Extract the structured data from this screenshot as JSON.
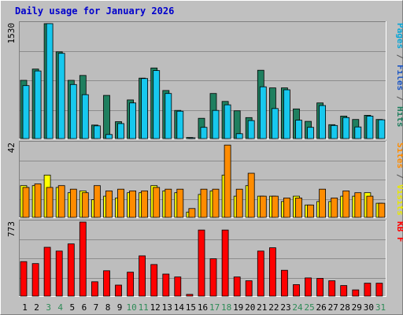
{
  "colors": {
    "background": "#c0c0c0",
    "plot": "#bdbdbd",
    "border_light": "#ffffff",
    "border_dark": "#808080",
    "title": "#0000cc",
    "hits": "#1f7f5f",
    "files": "#17c8ee",
    "pages": "#0aa6d6",
    "visits": "#ffff00",
    "sites": "#ff8c00",
    "kbytes": "#ff0000",
    "weekday_label": "#000000",
    "weekend_label": "#2e8b57"
  },
  "chart_data": {
    "type": "bar",
    "title": "Daily usage for January 2026",
    "categories": [
      "1",
      "2",
      "3",
      "4",
      "5",
      "6",
      "7",
      "8",
      "9",
      "10",
      "11",
      "12",
      "13",
      "14",
      "15",
      "16",
      "17",
      "18",
      "19",
      "20",
      "21",
      "22",
      "23",
      "24",
      "25",
      "26",
      "27",
      "28",
      "29",
      "30",
      "31"
    ],
    "weekend_days": [
      "3",
      "4",
      "10",
      "11",
      "17",
      "18",
      "24",
      "25",
      "31"
    ],
    "panels": [
      {
        "id": "traffic",
        "max_label": "1530",
        "ylim": [
          0,
          1530
        ],
        "side_label": [
          {
            "text": "Pages",
            "color": "#0aa6d6"
          },
          {
            "text": " / ",
            "color": "#555555"
          },
          {
            "text": "Files",
            "color": "#1d57c4"
          },
          {
            "text": " / ",
            "color": "#555555"
          },
          {
            "text": "Hits",
            "color": "#1f7f5f"
          }
        ],
        "series": [
          {
            "name": "Hits",
            "color": "#1f7f5f",
            "values": [
              775,
              925,
              1530,
              1155,
              775,
              840,
              180,
              575,
              225,
              515,
              805,
              940,
              640,
              375,
              15,
              270,
              600,
              495,
              370,
              280,
              910,
              675,
              675,
              395,
              230,
              475,
              185,
              300,
              255,
              310,
              255
            ]
          },
          {
            "name": "Files",
            "color": "#17c8ee",
            "values": [
              705,
              900,
              1530,
              1135,
              720,
              585,
              170,
              55,
              200,
              475,
              800,
              905,
              600,
              365,
              10,
              150,
              375,
              450,
              65,
              240,
              690,
              400,
              650,
              245,
              150,
              440,
              175,
              280,
              155,
              300,
              250
            ]
          }
        ]
      },
      {
        "id": "visitors",
        "max_label": "42",
        "ylim": [
          0,
          42
        ],
        "side_label": [
          {
            "text": "Sites",
            "color": "#ff8c00"
          },
          {
            "text": " / ",
            "color": "#555555"
          },
          {
            "text": "Visits",
            "color": "#e8e800"
          }
        ],
        "series": [
          {
            "name": "Visits",
            "color": "#ffff00",
            "values": [
              18,
              18,
              24,
              17,
              14,
              15,
              10,
              12,
              11,
              14,
              14,
              18,
              15,
              14,
              3,
              13,
              15,
              24,
              12,
              18,
              12,
              12,
              9,
              12,
              7,
              9,
              9,
              12,
              12,
              14,
              8
            ]
          },
          {
            "name": "Sites",
            "color": "#ff8c00",
            "values": [
              17,
              19,
              17,
              18,
              16,
              14,
              18,
              15,
              16,
              15,
              15,
              17,
              16,
              16,
              5,
              16,
              16,
              41,
              16,
              25,
              12,
              12,
              11,
              11,
              7,
              16,
              11,
              15,
              14,
              12,
              8
            ]
          }
        ]
      },
      {
        "id": "kbytes",
        "max_label": "773",
        "ylim": [
          0,
          773
        ],
        "side_label": [
          {
            "text": "KB F",
            "color": "#ff0000"
          }
        ],
        "series": [
          {
            "name": "KB F",
            "color": "#ff0000",
            "values": [
              360,
              340,
              510,
              470,
              545,
              773,
              150,
              265,
              115,
              250,
              420,
              330,
              230,
              200,
              18,
              690,
              390,
              690,
              200,
              160,
              470,
              505,
              270,
              120,
              190,
              185,
              160,
              110,
              65,
              135,
              135
            ]
          }
        ]
      }
    ]
  }
}
